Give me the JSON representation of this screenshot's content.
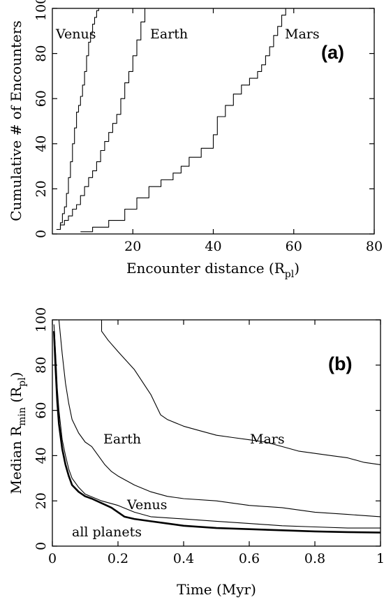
{
  "chart_data": [
    {
      "type": "line",
      "panel_label": "(a)",
      "xlabel": "Encounter distance (R",
      "xlabel_sub": "pl",
      "xlabel_close": ")",
      "ylabel": "Cumulative # of Encounters",
      "xlim": [
        0,
        80
      ],
      "ylim": [
        0,
        100
      ],
      "xticks": [
        20,
        40,
        60,
        80
      ],
      "yticks": [
        0,
        20,
        40,
        60,
        80,
        100
      ],
      "grid": false,
      "series": [
        {
          "name": "Venus",
          "x": [
            1.5,
            2,
            2.5,
            3,
            3.5,
            4,
            4.5,
            5,
            5.5,
            6,
            6.5,
            7,
            7.5,
            8,
            8.5,
            9,
            9.5,
            10,
            10.5,
            11,
            11.5
          ],
          "y": [
            2,
            5,
            9,
            12,
            18,
            25,
            32,
            40,
            47,
            54,
            57,
            61,
            66,
            72,
            79,
            85,
            89,
            93,
            96,
            99,
            100
          ]
        },
        {
          "name": "Earth",
          "x": [
            1,
            2,
            3,
            4,
            5,
            6,
            7,
            8,
            9,
            10,
            11,
            12,
            13,
            14,
            15,
            16,
            17,
            18,
            19,
            20,
            21,
            22,
            23
          ],
          "y": [
            2,
            4,
            6,
            8,
            11,
            13,
            17,
            21,
            25,
            28,
            32,
            37,
            41,
            45,
            49,
            53,
            60,
            67,
            72,
            79,
            86,
            94,
            100
          ]
        },
        {
          "name": "Mars",
          "x": [
            7,
            10,
            14,
            18,
            21,
            24,
            27,
            30,
            32,
            34,
            37,
            40,
            41,
            43,
            45,
            47,
            49,
            51,
            52,
            53,
            54,
            55,
            56,
            57,
            58
          ],
          "y": [
            1,
            3,
            6,
            11,
            16,
            21,
            24,
            27,
            30,
            34,
            38,
            44,
            52,
            57,
            62,
            66,
            69,
            72,
            75,
            79,
            83,
            88,
            92,
            97,
            100
          ]
        }
      ]
    },
    {
      "type": "line",
      "panel_label": "(b)",
      "xlabel": "Time (Myr)",
      "ylabel": "Median R",
      "ylabel_sub": "min",
      "ylabel_close": " (R",
      "ylabel_sub2": "pl",
      "ylabel_end": ")",
      "xlim": [
        0,
        1
      ],
      "ylim": [
        0,
        100
      ],
      "xticks": [
        0,
        0.2,
        0.4,
        0.6,
        0.8,
        1
      ],
      "xtick_labels": [
        "0",
        "0.2",
        "0.4",
        "0.6",
        "0.8",
        "1"
      ],
      "yticks": [
        0,
        20,
        40,
        60,
        80,
        100
      ],
      "grid": false,
      "series": [
        {
          "name": "Mars",
          "x": [
            0.15,
            0.15,
            0.17,
            0.2,
            0.25,
            0.3,
            0.33,
            0.35,
            0.4,
            0.45,
            0.5,
            0.55,
            0.6,
            0.65,
            0.7,
            0.75,
            0.8,
            0.85,
            0.9,
            0.95,
            1.0
          ],
          "y": [
            100,
            95,
            91,
            86,
            78,
            67,
            58,
            56,
            53,
            51,
            49,
            48,
            47,
            46,
            44,
            42,
            41,
            40,
            39,
            37,
            36
          ]
        },
        {
          "name": "Earth",
          "x": [
            0.02,
            0.03,
            0.04,
            0.05,
            0.06,
            0.08,
            0.1,
            0.12,
            0.14,
            0.16,
            0.18,
            0.2,
            0.25,
            0.3,
            0.35,
            0.4,
            0.5,
            0.6,
            0.7,
            0.8,
            0.9,
            1.0
          ],
          "y": [
            100,
            85,
            72,
            63,
            56,
            50,
            46,
            44,
            40,
            36,
            33,
            31,
            27,
            24,
            22,
            21,
            20,
            18,
            17,
            15,
            14,
            13
          ]
        },
        {
          "name": "Venus",
          "x": [
            0.005,
            0.01,
            0.015,
            0.02,
            0.03,
            0.04,
            0.05,
            0.06,
            0.08,
            0.1,
            0.15,
            0.2,
            0.25,
            0.3,
            0.4,
            0.5,
            0.6,
            0.7,
            0.8,
            0.9,
            1.0
          ],
          "y": [
            98,
            85,
            70,
            60,
            47,
            40,
            34,
            30,
            26,
            23,
            20,
            18,
            15,
            13,
            12,
            11,
            10,
            9,
            8.5,
            8,
            8
          ]
        },
        {
          "name": "all planets",
          "x": [
            0.005,
            0.01,
            0.015,
            0.02,
            0.03,
            0.04,
            0.05,
            0.06,
            0.08,
            0.1,
            0.12,
            0.15,
            0.18,
            0.2,
            0.22,
            0.25,
            0.3,
            0.35,
            0.4,
            0.5,
            0.6,
            0.7,
            0.8,
            0.9,
            1.0
          ],
          "y": [
            95,
            78,
            64,
            54,
            43,
            36,
            31,
            27,
            24,
            22,
            21,
            19,
            17,
            15,
            13,
            12,
            11,
            10,
            9,
            8,
            7.5,
            7,
            6.5,
            6.2,
            6
          ]
        }
      ]
    }
  ]
}
